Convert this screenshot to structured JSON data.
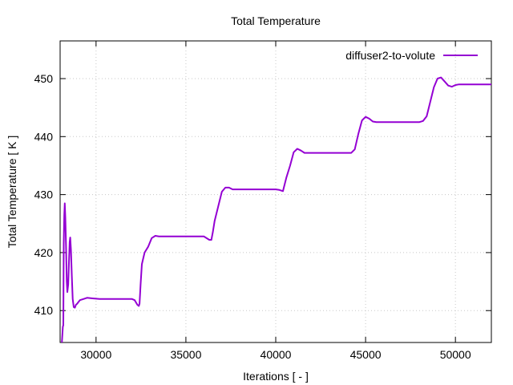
{
  "chart_data": {
    "type": "line",
    "title": "Total Temperature",
    "xlabel": "Iterations [ - ]",
    "ylabel": "Total Temperature [ K ]",
    "xlim": [
      28000,
      52000
    ],
    "ylim": [
      404.5,
      456.5
    ],
    "xticks": [
      30000,
      35000,
      40000,
      45000,
      50000
    ],
    "yticks": [
      410,
      420,
      430,
      440,
      450
    ],
    "grid": true,
    "legend_position": "top-right",
    "series": [
      {
        "name": "diffuser2-to-volute",
        "color": "#9400d3",
        "x": [
          28100,
          28150,
          28180,
          28200,
          28230,
          28260,
          28290,
          28330,
          28370,
          28400,
          28450,
          28500,
          28530,
          28560,
          28600,
          28650,
          28700,
          28760,
          28820,
          28880,
          28950,
          29000,
          29100,
          29300,
          29500,
          29800,
          30200,
          31000,
          31500,
          32000,
          32150,
          32300,
          32380,
          32420,
          32480,
          32550,
          32700,
          32900,
          33100,
          33300,
          33500,
          34000,
          35000,
          36000,
          36300,
          36420,
          36500,
          36600,
          36800,
          37000,
          37200,
          37400,
          37600,
          37800,
          38000,
          39000,
          40000,
          40200,
          40400,
          40600,
          40800,
          41000,
          41200,
          41400,
          41600,
          41800,
          42000,
          42200,
          43000,
          44000,
          44200,
          44400,
          44600,
          44800,
          45000,
          45200,
          45400,
          45600,
          45800,
          46000,
          46300,
          47000,
          48000,
          48200,
          48400,
          48600,
          48800,
          49000,
          49200,
          49400,
          49600,
          49800,
          50000,
          50200,
          50500,
          51000,
          52000
        ],
        "values": [
          404.5,
          407.2,
          407.5,
          421.5,
          426.5,
          428.5,
          426.0,
          421.0,
          415.0,
          413.2,
          414.5,
          419.0,
          421.8,
          422.6,
          420.5,
          416.0,
          412.0,
          410.6,
          410.5,
          411.0,
          411.2,
          411.4,
          411.8,
          412.0,
          412.2,
          412.1,
          412.0,
          412.0,
          412.0,
          412.0,
          411.8,
          411.0,
          410.8,
          411.2,
          414.5,
          418.0,
          420.0,
          421.0,
          422.5,
          422.9,
          422.8,
          422.8,
          422.8,
          422.8,
          422.2,
          422.2,
          423.5,
          425.5,
          428.0,
          430.5,
          431.2,
          431.2,
          430.9,
          430.9,
          430.9,
          430.9,
          430.9,
          430.8,
          430.6,
          433.0,
          435.0,
          437.3,
          437.9,
          437.6,
          437.2,
          437.2,
          437.2,
          437.2,
          437.2,
          437.2,
          437.2,
          437.8,
          440.5,
          442.8,
          443.4,
          443.1,
          442.6,
          442.5,
          442.5,
          442.5,
          442.5,
          442.5,
          442.5,
          442.7,
          443.5,
          446.0,
          448.5,
          450.0,
          450.2,
          449.5,
          448.8,
          448.6,
          448.9,
          449.0,
          449.0,
          449.0,
          449.0
        ]
      }
    ]
  }
}
